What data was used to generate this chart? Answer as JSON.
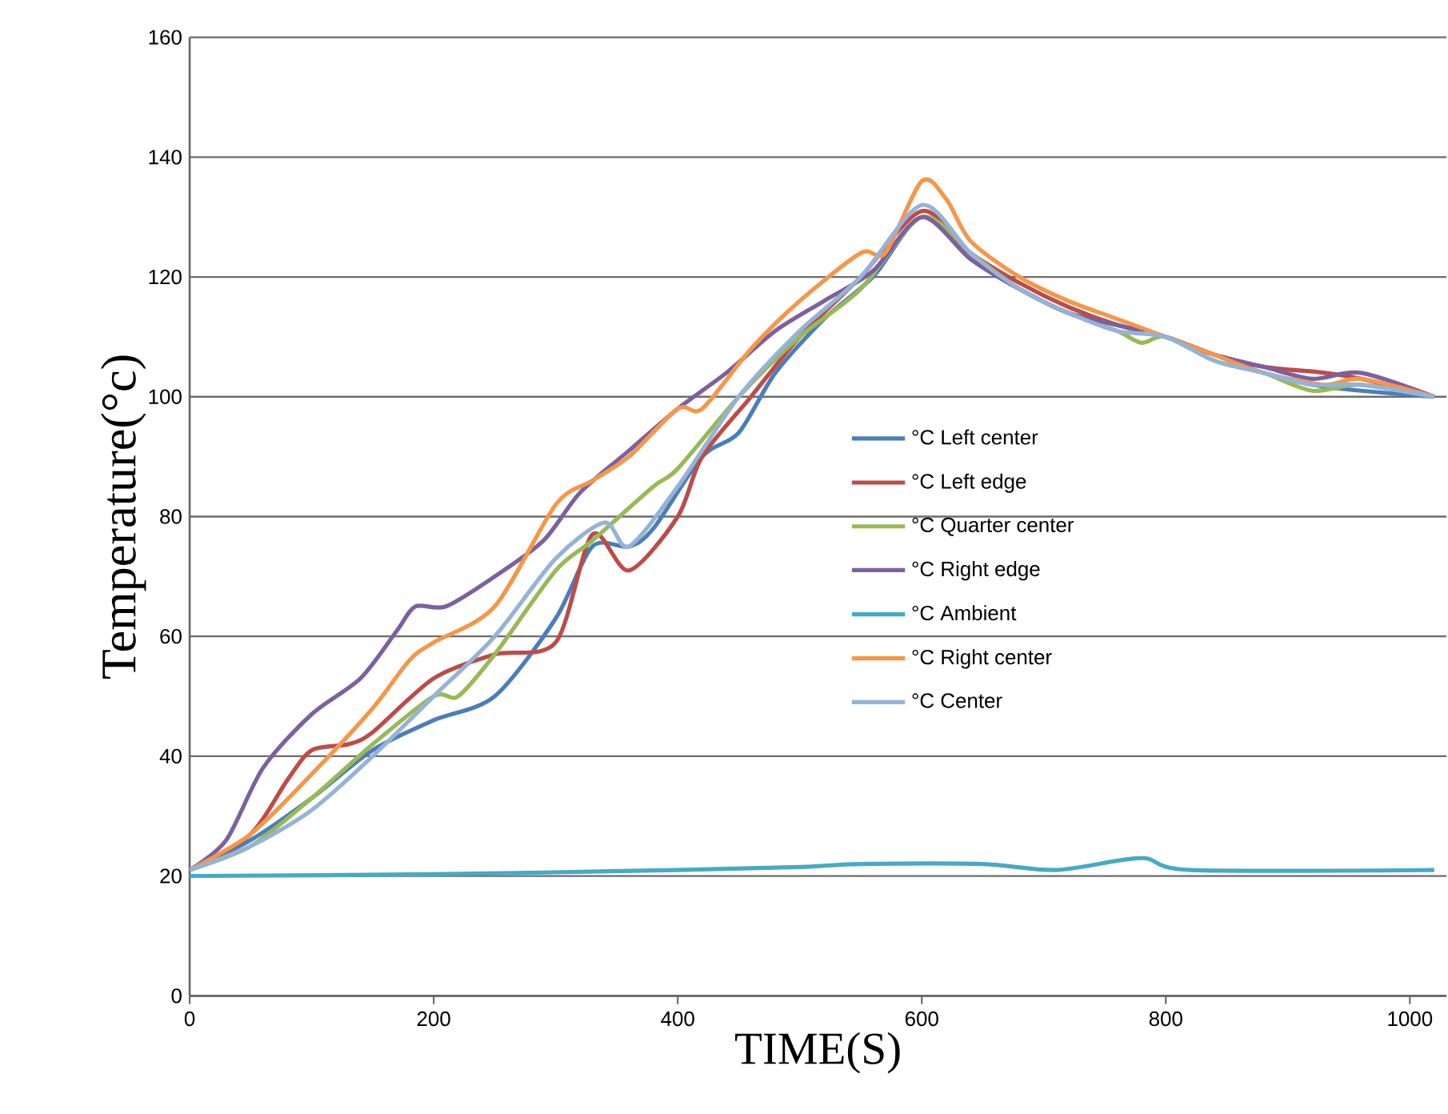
{
  "chart_data": {
    "type": "line",
    "xlabel": "TIME(S)",
    "ylabel": "Temperature(°c)",
    "xlim": [
      0,
      1030
    ],
    "ylim": [
      0,
      160
    ],
    "xticks": [
      0,
      200,
      400,
      600,
      800,
      1000
    ],
    "yticks": [
      0,
      20,
      40,
      60,
      80,
      100,
      120,
      140,
      160
    ],
    "grid": "y",
    "legend": "right",
    "marker": "none",
    "line_style": "solid",
    "series": [
      {
        "name": "°C Left center",
        "color": "#4a7ebb",
        "x": [
          0,
          50,
          100,
          150,
          200,
          250,
          300,
          330,
          360,
          380,
          420,
          450,
          480,
          520,
          560,
          600,
          640,
          680,
          720,
          760,
          800,
          840,
          880,
          920,
          960,
          1020
        ],
        "values": [
          21,
          26,
          33,
          41,
          46,
          50,
          63,
          75,
          75,
          78,
          90,
          94,
          104,
          113,
          120,
          130,
          123,
          118,
          114,
          112,
          110,
          107,
          104,
          102,
          101,
          100
        ]
      },
      {
        "name": "°C Left edge",
        "color": "#be4b48",
        "x": [
          0,
          50,
          80,
          100,
          130,
          150,
          200,
          250,
          300,
          330,
          360,
          400,
          420,
          460,
          500,
          550,
          600,
          640,
          680,
          720,
          760,
          800,
          840,
          880,
          930,
          960,
          1020
        ],
        "values": [
          21,
          27,
          36,
          41,
          42,
          44,
          53,
          57,
          59,
          77,
          71,
          80,
          90,
          100,
          110,
          120,
          131,
          124,
          119,
          115,
          112,
          110,
          107,
          105,
          104,
          103,
          100
        ]
      },
      {
        "name": "°C Quarter center",
        "color": "#98b954",
        "x": [
          0,
          50,
          100,
          150,
          200,
          220,
          250,
          300,
          330,
          380,
          400,
          450,
          500,
          550,
          600,
          640,
          680,
          720,
          760,
          780,
          800,
          840,
          880,
          920,
          960,
          1020
        ],
        "values": [
          21,
          25,
          33,
          42,
          50,
          50,
          57,
          71,
          76,
          85,
          88,
          100,
          110,
          118,
          130,
          124,
          118,
          114,
          111,
          109,
          110,
          106,
          104,
          101,
          102,
          100
        ]
      },
      {
        "name": "°C Right edge",
        "color": "#7d60a0",
        "x": [
          0,
          30,
          60,
          100,
          140,
          170,
          185,
          210,
          250,
          290,
          320,
          360,
          400,
          440,
          480,
          520,
          560,
          600,
          640,
          680,
          720,
          760,
          800,
          840,
          880,
          920,
          960,
          1020
        ],
        "values": [
          21,
          26,
          38,
          47,
          53,
          61,
          65,
          65,
          70,
          76,
          84,
          91,
          98,
          104,
          111,
          116,
          121,
          130,
          123,
          118,
          114,
          112,
          110,
          107,
          105,
          103,
          104,
          100
        ]
      },
      {
        "name": "°C Ambient",
        "color": "#46aac5",
        "x": [
          0,
          200,
          400,
          500,
          550,
          650,
          710,
          780,
          820,
          1020
        ],
        "values": [
          20,
          20.3,
          21,
          21.5,
          22,
          22,
          21,
          23,
          21,
          21
        ]
      },
      {
        "name": "°C Right center",
        "color": "#f79646",
        "x": [
          0,
          50,
          100,
          150,
          180,
          200,
          250,
          300,
          330,
          360,
          400,
          420,
          460,
          500,
          550,
          570,
          600,
          620,
          640,
          680,
          720,
          760,
          800,
          840,
          880,
          930,
          960,
          1020
        ],
        "values": [
          21,
          27,
          37,
          48,
          56,
          59,
          65,
          82,
          86,
          90,
          98,
          98,
          108,
          116,
          124,
          124,
          136,
          133,
          126,
          120,
          116,
          113,
          110,
          107,
          104,
          102,
          103,
          100
        ]
      },
      {
        "name": "°C Center",
        "color": "#95b3d7",
        "x": [
          0,
          50,
          100,
          150,
          200,
          250,
          300,
          340,
          360,
          400,
          450,
          500,
          550,
          600,
          640,
          680,
          720,
          760,
          800,
          840,
          880,
          920,
          960,
          1020
        ],
        "values": [
          21,
          25,
          31,
          40,
          50,
          60,
          73,
          79,
          75,
          85,
          100,
          111,
          120,
          132,
          124,
          118,
          114,
          111,
          110,
          106,
          104,
          102,
          102,
          100
        ]
      }
    ]
  }
}
